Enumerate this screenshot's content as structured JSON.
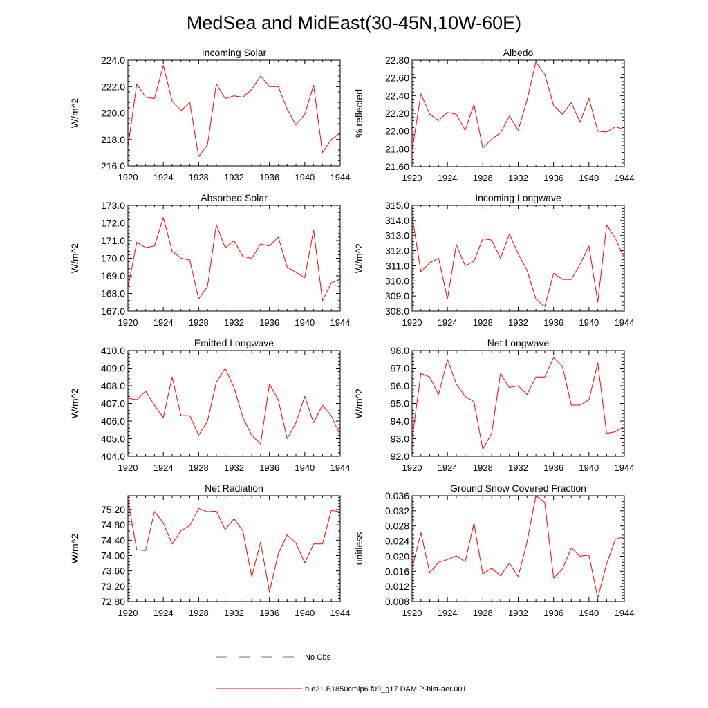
{
  "page_title": "MedSea and MidEast(30-45N,10W-60E)",
  "colors": {
    "model_line": "#ff0000",
    "obs_line": "#6b6bbd",
    "axes": "#000000"
  },
  "legend": {
    "entries": [
      {
        "label": "No Obs",
        "style": "dashed",
        "color": "#6b6bbd"
      },
      {
        "label": "b.e21.B1850cmip6.f09_g17.DAMIP-hist-aer.001",
        "style": "solid",
        "color": "#ff0000"
      }
    ]
  },
  "chart_data": [
    {
      "type": "line",
      "title": "Incoming Solar",
      "xlabel": "",
      "ylabel": "W/m^2",
      "xlim": [
        1920,
        1944
      ],
      "ylim": [
        216.0,
        224.0
      ],
      "x_ticks": [
        1920,
        1924,
        1928,
        1932,
        1936,
        1940,
        1944
      ],
      "y_ticks": [
        "216.0",
        "218.0",
        "220.0",
        "222.0",
        "224.0"
      ],
      "series": [
        {
          "x": [
            1920,
            1921,
            1922,
            1923,
            1924,
            1925,
            1926,
            1927,
            1928,
            1929,
            1930,
            1931,
            1932,
            1933,
            1934,
            1935,
            1936,
            1937,
            1938,
            1939,
            1940,
            1941,
            1942,
            1943,
            1944
          ],
          "y": [
            217.4,
            222.2,
            221.2,
            221.1,
            223.6,
            220.9,
            220.2,
            220.8,
            216.7,
            217.6,
            222.2,
            221.1,
            221.3,
            221.2,
            221.8,
            222.8,
            222.0,
            222.0,
            220.3,
            219.1,
            219.9,
            222.1,
            217.0,
            218.0,
            218.5
          ]
        }
      ]
    },
    {
      "type": "line",
      "title": "Albedo",
      "xlabel": "",
      "ylabel": "% reflected",
      "xlim": [
        1920,
        1944
      ],
      "ylim": [
        21.6,
        22.8
      ],
      "x_ticks": [
        1920,
        1924,
        1928,
        1932,
        1936,
        1940,
        1944
      ],
      "y_ticks": [
        "21.60",
        "21.80",
        "22.00",
        "22.20",
        "22.40",
        "22.60",
        "22.80"
      ],
      "series": [
        {
          "x": [
            1920,
            1921,
            1922,
            1923,
            1924,
            1925,
            1926,
            1927,
            1928,
            1929,
            1930,
            1931,
            1932,
            1933,
            1934,
            1935,
            1936,
            1937,
            1938,
            1939,
            1940,
            1941,
            1942,
            1943,
            1944
          ],
          "y": [
            21.78,
            22.42,
            22.19,
            22.12,
            22.21,
            22.19,
            22.01,
            22.3,
            21.81,
            21.91,
            21.98,
            22.17,
            22.01,
            22.35,
            22.78,
            22.64,
            22.29,
            22.19,
            22.32,
            22.1,
            22.37,
            22.0,
            21.99,
            22.05,
            22.02
          ]
        }
      ]
    },
    {
      "type": "line",
      "title": "Absorbed Solar",
      "xlabel": "",
      "ylabel": "W/m^2",
      "xlim": [
        1920,
        1944
      ],
      "ylim": [
        167.0,
        173.0
      ],
      "x_ticks": [
        1920,
        1924,
        1928,
        1932,
        1936,
        1940,
        1944
      ],
      "y_ticks": [
        "167.0",
        "168.0",
        "169.0",
        "170.0",
        "171.0",
        "172.0",
        "173.0"
      ],
      "series": [
        {
          "x": [
            1920,
            1921,
            1922,
            1923,
            1924,
            1925,
            1926,
            1927,
            1928,
            1929,
            1930,
            1931,
            1932,
            1933,
            1934,
            1935,
            1936,
            1937,
            1938,
            1939,
            1940,
            1941,
            1942,
            1943,
            1944
          ],
          "y": [
            168.3,
            170.9,
            170.6,
            170.7,
            172.3,
            170.4,
            170.0,
            169.9,
            167.7,
            168.4,
            171.9,
            170.6,
            171.0,
            170.1,
            170.0,
            170.8,
            170.7,
            171.2,
            169.5,
            169.2,
            168.9,
            171.6,
            167.6,
            168.6,
            168.8
          ]
        }
      ]
    },
    {
      "type": "line",
      "title": "Incoming Longwave",
      "xlabel": "",
      "ylabel": "W/m^2",
      "xlim": [
        1920,
        1944
      ],
      "ylim": [
        308.0,
        315.0
      ],
      "x_ticks": [
        1920,
        1924,
        1928,
        1932,
        1936,
        1940,
        1944
      ],
      "y_ticks": [
        "308.0",
        "309.0",
        "310.0",
        "311.0",
        "312.0",
        "313.0",
        "314.0",
        "315.0"
      ],
      "series": [
        {
          "x": [
            1920,
            1921,
            1922,
            1923,
            1924,
            1925,
            1926,
            1927,
            1928,
            1929,
            1930,
            1931,
            1932,
            1933,
            1934,
            1935,
            1936,
            1937,
            1938,
            1939,
            1940,
            1941,
            1942,
            1943,
            1944
          ],
          "y": [
            314.3,
            310.6,
            311.2,
            311.5,
            308.8,
            312.4,
            311.0,
            311.3,
            312.8,
            312.7,
            311.5,
            313.1,
            311.8,
            310.7,
            308.8,
            308.3,
            310.5,
            310.1,
            310.1,
            311.1,
            312.3,
            308.6,
            313.7,
            312.8,
            311.5
          ]
        }
      ]
    },
    {
      "type": "line",
      "title": "Emitted Longwave",
      "xlabel": "",
      "ylabel": "W/m^2",
      "xlim": [
        1920,
        1944
      ],
      "ylim": [
        404.0,
        410.0
      ],
      "x_ticks": [
        1920,
        1924,
        1928,
        1932,
        1936,
        1940,
        1944
      ],
      "y_ticks": [
        "404.0",
        "405.0",
        "406.0",
        "407.0",
        "408.0",
        "409.0",
        "410.0"
      ],
      "series": [
        {
          "x": [
            1920,
            1921,
            1922,
            1923,
            1924,
            1925,
            1926,
            1927,
            1928,
            1929,
            1930,
            1931,
            1932,
            1933,
            1934,
            1935,
            1936,
            1937,
            1938,
            1939,
            1940,
            1941,
            1942,
            1943,
            1944
          ],
          "y": [
            407.3,
            407.2,
            407.7,
            406.9,
            406.2,
            408.5,
            406.3,
            406.3,
            405.2,
            406.0,
            408.2,
            409.0,
            407.9,
            406.2,
            405.2,
            404.7,
            408.1,
            407.2,
            405.0,
            405.9,
            407.4,
            405.9,
            406.9,
            406.3,
            405.2
          ]
        }
      ]
    },
    {
      "type": "line",
      "title": "Net Longwave",
      "xlabel": "",
      "ylabel": "W/m^2",
      "xlim": [
        1920,
        1944
      ],
      "ylim": [
        92.0,
        98.0
      ],
      "x_ticks": [
        1920,
        1924,
        1928,
        1932,
        1936,
        1940,
        1944
      ],
      "y_ticks": [
        "92.0",
        "93.0",
        "94.0",
        "95.0",
        "96.0",
        "97.0",
        "98.0"
      ],
      "series": [
        {
          "x": [
            1920,
            1921,
            1922,
            1923,
            1924,
            1925,
            1926,
            1927,
            1928,
            1929,
            1930,
            1931,
            1932,
            1933,
            1934,
            1935,
            1936,
            1937,
            1938,
            1939,
            1940,
            1941,
            1942,
            1943,
            1944
          ],
          "y": [
            93.0,
            96.7,
            96.5,
            95.5,
            97.5,
            96.1,
            95.4,
            95.1,
            92.4,
            93.3,
            96.7,
            95.9,
            96.0,
            95.5,
            96.5,
            96.5,
            97.6,
            97.1,
            94.9,
            94.9,
            95.2,
            97.3,
            93.3,
            93.4,
            93.7
          ]
        }
      ]
    },
    {
      "type": "line",
      "title": "Net Radiation",
      "xlabel": "",
      "ylabel": "W/m^2",
      "xlim": [
        1920,
        1944
      ],
      "ylim": [
        72.8,
        75.56
      ],
      "x_ticks": [
        1920,
        1924,
        1928,
        1932,
        1936,
        1940,
        1944
      ],
      "y_ticks": [
        "72.80",
        "73.20",
        "73.60",
        "74.00",
        "74.40",
        "74.80",
        "75.20"
      ],
      "series": [
        {
          "x": [
            1920,
            1921,
            1922,
            1923,
            1924,
            1925,
            1926,
            1927,
            1928,
            1929,
            1930,
            1931,
            1932,
            1933,
            1934,
            1935,
            1936,
            1937,
            1938,
            1939,
            1940,
            1941,
            1942,
            1943,
            1944
          ],
          "y": [
            75.45,
            74.15,
            74.13,
            75.15,
            74.85,
            74.3,
            74.65,
            74.78,
            75.23,
            75.14,
            75.16,
            74.68,
            74.96,
            74.64,
            73.45,
            74.35,
            73.05,
            74.05,
            74.54,
            74.32,
            73.81,
            74.3,
            74.3,
            75.18,
            75.14
          ]
        }
      ]
    },
    {
      "type": "line",
      "title": "Ground Snow Covered Fraction",
      "xlabel": "",
      "ylabel": "unitless",
      "xlim": [
        1920,
        1944
      ],
      "ylim": [
        0.008,
        0.036
      ],
      "x_ticks": [
        1920,
        1924,
        1928,
        1932,
        1936,
        1940,
        1944
      ],
      "y_ticks": [
        "0.008",
        "0.012",
        "0.016",
        "0.020",
        "0.024",
        "0.028",
        "0.032",
        "0.036"
      ],
      "series": [
        {
          "x": [
            1920,
            1921,
            1922,
            1923,
            1924,
            1925,
            1926,
            1927,
            1928,
            1929,
            1930,
            1931,
            1932,
            1933,
            1934,
            1935,
            1936,
            1937,
            1938,
            1939,
            1940,
            1941,
            1942,
            1943,
            1944
          ],
          "y": [
            0.0168,
            0.0262,
            0.0156,
            0.0184,
            0.0191,
            0.0201,
            0.0185,
            0.0287,
            0.0153,
            0.0168,
            0.0148,
            0.0182,
            0.0146,
            0.0237,
            0.0361,
            0.0342,
            0.0142,
            0.0166,
            0.0222,
            0.02,
            0.0203,
            0.0089,
            0.018,
            0.0245,
            0.0252
          ]
        }
      ]
    }
  ]
}
